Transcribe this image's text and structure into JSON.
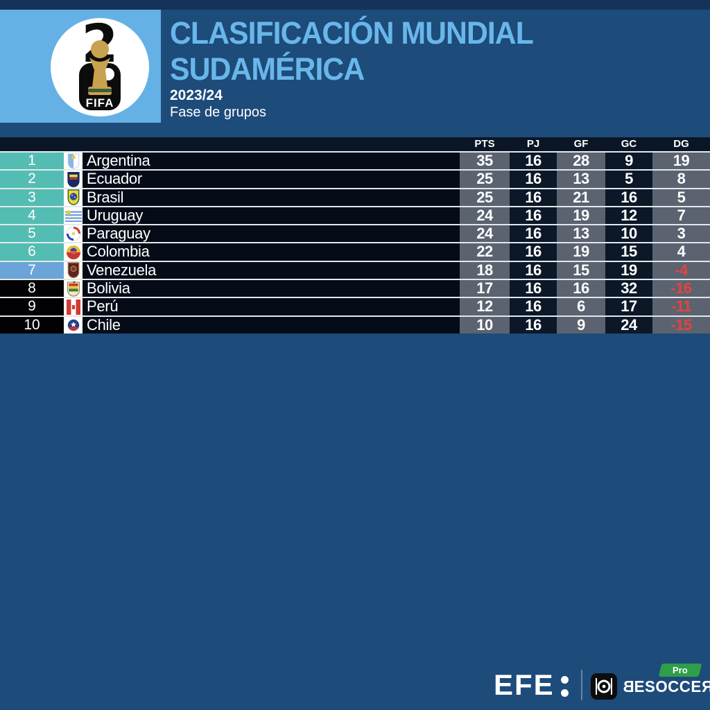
{
  "header": {
    "title_line1": "CLASIFICACIÓN MUNDIAL",
    "title_line2": "SUDAMÉRICA",
    "season": "2023/24",
    "phase": "Fase de grupos",
    "logo": {
      "two": "2",
      "six": "6",
      "fifa": "FIFA"
    }
  },
  "chart_data": {
    "type": "table",
    "title": "CLASIFICACIÓN MUNDIAL SUDAMÉRICA",
    "subtitle": "2023/24 · Fase de grupos",
    "columns": [
      "PTS",
      "PJ",
      "GF",
      "GC",
      "DG"
    ],
    "rows": [
      {
        "pos": "1",
        "team": "Argentina",
        "flag": "argentina",
        "zone": "teal",
        "pts": "35",
        "pj": "16",
        "gf": "28",
        "gc": "9",
        "dg": "19"
      },
      {
        "pos": "2",
        "team": "Ecuador",
        "flag": "ecuador",
        "zone": "teal",
        "pts": "25",
        "pj": "16",
        "gf": "13",
        "gc": "5",
        "dg": "8"
      },
      {
        "pos": "3",
        "team": "Brasil",
        "flag": "brasil",
        "zone": "teal",
        "pts": "25",
        "pj": "16",
        "gf": "21",
        "gc": "16",
        "dg": "5"
      },
      {
        "pos": "4",
        "team": "Uruguay",
        "flag": "uruguay",
        "zone": "teal",
        "pts": "24",
        "pj": "16",
        "gf": "19",
        "gc": "12",
        "dg": "7"
      },
      {
        "pos": "5",
        "team": "Paraguay",
        "flag": "paraguay",
        "zone": "teal",
        "pts": "24",
        "pj": "16",
        "gf": "13",
        "gc": "10",
        "dg": "3"
      },
      {
        "pos": "6",
        "team": "Colombia",
        "flag": "colombia",
        "zone": "teal",
        "pts": "22",
        "pj": "16",
        "gf": "19",
        "gc": "15",
        "dg": "4"
      },
      {
        "pos": "7",
        "team": "Venezuela",
        "flag": "venezuela",
        "zone": "blue",
        "pts": "18",
        "pj": "16",
        "gf": "15",
        "gc": "19",
        "dg": "-4"
      },
      {
        "pos": "8",
        "team": "Bolivia",
        "flag": "bolivia",
        "zone": "dark",
        "pts": "17",
        "pj": "16",
        "gf": "16",
        "gc": "32",
        "dg": "-16"
      },
      {
        "pos": "9",
        "team": "Perú",
        "flag": "peru",
        "zone": "dark",
        "pts": "12",
        "pj": "16",
        "gf": "6",
        "gc": "17",
        "dg": "-11"
      },
      {
        "pos": "10",
        "team": "Chile",
        "flag": "chile",
        "zone": "dark",
        "pts": "10",
        "pj": "16",
        "gf": "9",
        "gc": "24",
        "dg": "-15"
      }
    ]
  },
  "footer": {
    "efe": "EFE",
    "besoccer_first": "B",
    "besoccer_middle": "ESOCCE",
    "besoccer_last": "R",
    "pro_badge": "Pro"
  },
  "colors": {
    "page_bg": "#1d4b7a",
    "top_strip": "#15335a",
    "band_blue": "#65b1e5",
    "title_blue": "#69b7ea",
    "header_band": "#0a1626",
    "name_cell": "#060c17",
    "col_gray": "#5b6370",
    "col_dark": "#0c1828",
    "zone_teal": "#54bdb3",
    "zone_blue": "#6aa4d8",
    "zone_dark": "#020205",
    "negative_red": "#e8423c",
    "pro_green": "#2f9e48"
  }
}
